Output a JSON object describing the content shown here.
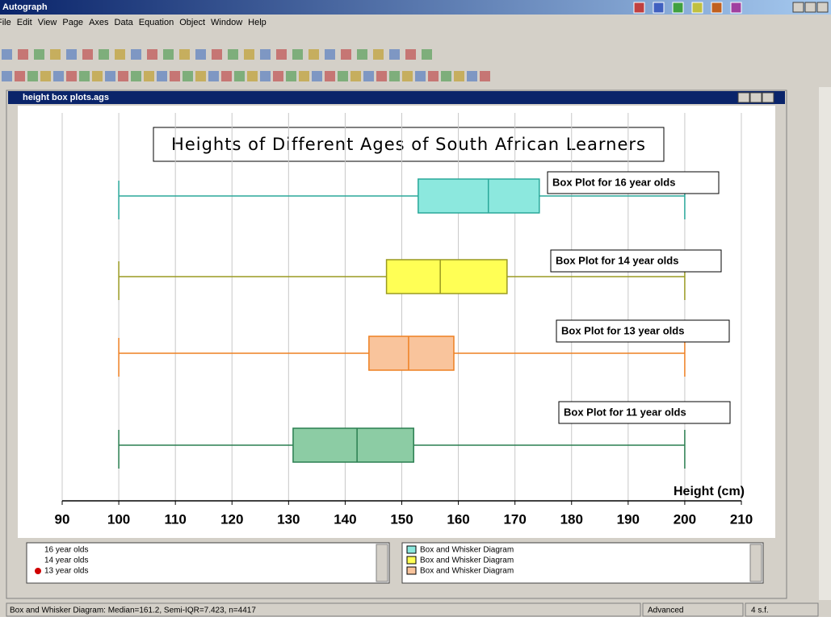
{
  "app": {
    "title": "Autograph",
    "menu": [
      "File",
      "Edit",
      "View",
      "Page",
      "Axes",
      "Data",
      "Equation",
      "Object",
      "Window",
      "Help"
    ]
  },
  "window": {
    "title": "height box plots.ags"
  },
  "chart_data": {
    "type": "box",
    "title": "Heights of Different Ages of South African Learners",
    "xlabel": "Height (cm)",
    "xlim": [
      90,
      210
    ],
    "xticks": [
      90,
      100,
      110,
      120,
      130,
      140,
      150,
      160,
      170,
      180,
      190,
      200,
      210
    ],
    "grid": true,
    "series": [
      {
        "name": "16 year olds",
        "label": "Box Plot for 16 year olds",
        "color": "#8ce8de",
        "stroke": "#2aa89a",
        "min": 100,
        "q1": 152.9,
        "median": 165.3,
        "q3": 174.3,
        "max": 200
      },
      {
        "name": "14 year olds",
        "label": "Box Plot for 14 year olds",
        "color": "#ffff55",
        "stroke": "#9a9a22",
        "min": 100,
        "q1": 147.3,
        "median": 156.8,
        "q3": 168.6,
        "max": 200
      },
      {
        "name": "13 year olds",
        "label": "Box Plot for 13  year olds",
        "color": "#f9c49c",
        "stroke": "#ee8022",
        "min": 100,
        "q1": 144.2,
        "median": 151.2,
        "q3": 159.2,
        "max": 200
      },
      {
        "name": "11 year olds",
        "label": "Box Plot for 11 year olds",
        "color": "#8ccca4",
        "stroke": "#2a7e50",
        "min": 100,
        "q1": 130.8,
        "median": 142.1,
        "q3": 152.1,
        "max": 200
      }
    ]
  },
  "legend_right": {
    "items": [
      "Box and Whisker Diagram",
      "Box and Whisker Diagram",
      "Box and Whisker Diagram"
    ]
  },
  "status": {
    "message": "Box and Whisker Diagram: Median=161.2, Semi-IQR=7.423, n=4417",
    "mode": "Advanced",
    "precision": "4 s.f."
  }
}
